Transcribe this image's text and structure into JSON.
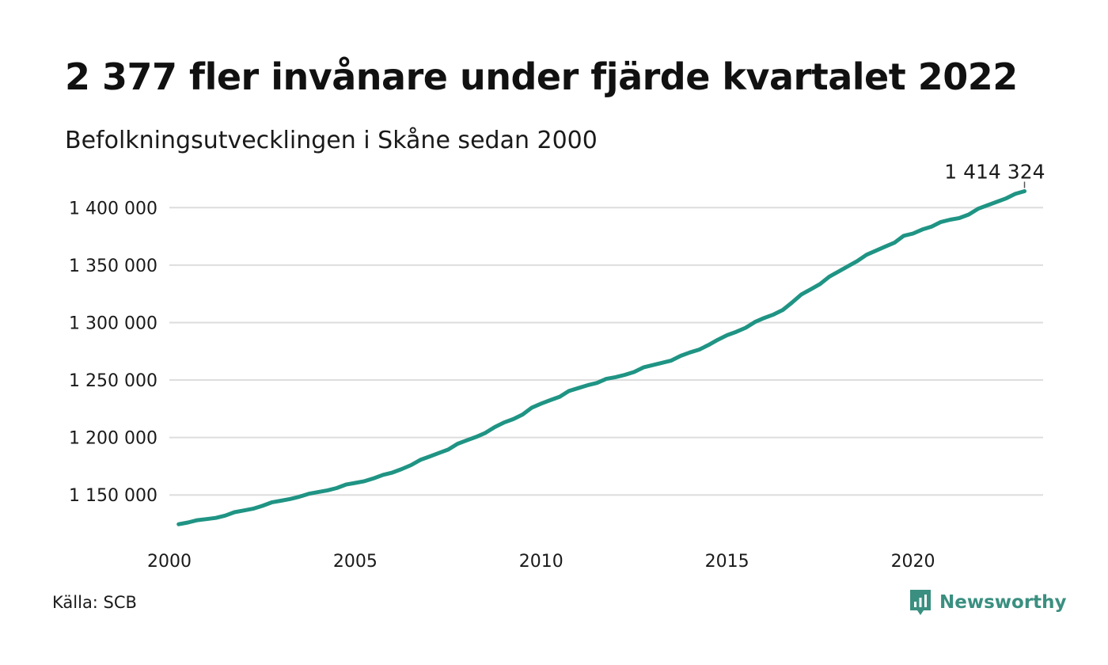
{
  "header": {
    "title": "2 377 fler invånare under fjärde kvartalet 2022",
    "subtitle": "Befolkningsutvecklingen i Skåne sedan 2000"
  },
  "footer": {
    "source": "Källa: SCB",
    "brand_name": "Newsworthy",
    "brand_color": "#3a8f80"
  },
  "chart_data": {
    "type": "line",
    "title": "2 377 fler invånare under fjärde kvartalet 2022",
    "subtitle": "Befolkningsutvecklingen i Skåne sedan 2000",
    "xlabel": "",
    "ylabel": "",
    "xlim": [
      2000,
      2023.5
    ],
    "ylim": [
      1115000,
      1425000
    ],
    "x_ticks": [
      2000,
      2005,
      2010,
      2015,
      2020
    ],
    "x_tick_labels": [
      "2000",
      "2005",
      "2010",
      "2015",
      "2020"
    ],
    "y_ticks": [
      1150000,
      1200000,
      1250000,
      1300000,
      1350000,
      1400000
    ],
    "y_tick_labels": [
      "1 150 000",
      "1 200 000",
      "1 250 000",
      "1 300 000",
      "1 350 000",
      "1 400 000"
    ],
    "grid": "horizontal",
    "line_color": "#1f9484",
    "end_label": "1 414 324",
    "series": [
      {
        "x": [
          2000.25,
          2000.5,
          2000.75,
          2001.0,
          2001.25,
          2001.5,
          2001.75,
          2002.0,
          2002.25,
          2002.5,
          2002.75,
          2003.0,
          2003.25,
          2003.5,
          2003.75,
          2004.0,
          2004.25,
          2004.5,
          2004.75,
          2005.0,
          2005.25,
          2005.5,
          2005.75,
          2006.0,
          2006.25,
          2006.5,
          2006.75,
          2007.0,
          2007.25,
          2007.5,
          2007.75,
          2008.0,
          2008.25,
          2008.5,
          2008.75,
          2009.0,
          2009.25,
          2009.5,
          2009.75,
          2010.0,
          2010.25,
          2010.5,
          2010.75,
          2011.0,
          2011.25,
          2011.5,
          2011.75,
          2012.0,
          2012.25,
          2012.5,
          2012.75,
          2013.0,
          2013.25,
          2013.5,
          2013.75,
          2014.0,
          2014.25,
          2014.5,
          2014.75,
          2015.0,
          2015.25,
          2015.5,
          2015.75,
          2016.0,
          2016.25,
          2016.5,
          2016.75,
          2017.0,
          2017.25,
          2017.5,
          2017.75,
          2018.0,
          2018.25,
          2018.5,
          2018.75,
          2019.0,
          2019.25,
          2019.5,
          2019.75,
          2020.0,
          2020.25,
          2020.5,
          2020.75,
          2021.0,
          2021.25,
          2021.5,
          2021.75,
          2022.0,
          2022.25,
          2022.5,
          2022.75,
          2023.0
        ],
        "values": [
          1124500,
          1126000,
          1128000,
          1129000,
          1130000,
          1132000,
          1135000,
          1136500,
          1138000,
          1140500,
          1143500,
          1145000,
          1146500,
          1148500,
          1151000,
          1152500,
          1154000,
          1156000,
          1159000,
          1160500,
          1162000,
          1164500,
          1167500,
          1169500,
          1172500,
          1176000,
          1180500,
          1183500,
          1186500,
          1189500,
          1194500,
          1197500,
          1200500,
          1204000,
          1209000,
          1213000,
          1216000,
          1220000,
          1226000,
          1229500,
          1232500,
          1235500,
          1240500,
          1243000,
          1245500,
          1247500,
          1251000,
          1252500,
          1254500,
          1257000,
          1261000,
          1263000,
          1265000,
          1267000,
          1271000,
          1274000,
          1276500,
          1280500,
          1285000,
          1289000,
          1292000,
          1295500,
          1300500,
          1304000,
          1307000,
          1311000,
          1317500,
          1324500,
          1329000,
          1333500,
          1340000,
          1344500,
          1349000,
          1353500,
          1359000,
          1362500,
          1366000,
          1369500,
          1375500,
          1377500,
          1381000,
          1383500,
          1387500,
          1389500,
          1391000,
          1394000,
          1399000,
          1402000,
          1405000,
          1408000,
          1412000,
          1414324
        ]
      }
    ]
  }
}
